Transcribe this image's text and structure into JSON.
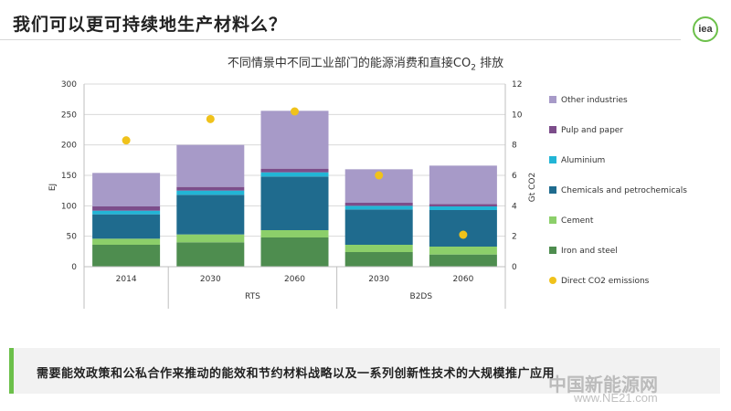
{
  "page": {
    "title": "我们可以更可持续地生产材料么？",
    "logo_text": "iea",
    "bottom_text": "需要能效政策和公私合作来推动的能效和节约材料战略以及一系列创新性技术的大规模推广应用",
    "watermark": "中国新能源网",
    "watermark_url": "www.NE21.com"
  },
  "chart_data": {
    "type": "bar",
    "title_prefix": "不同情景中不同工业部门的能源消费和直接CO",
    "title_sub": "2",
    "title_suffix": " 排放",
    "ylabel": "EJ",
    "y2label": "Gt CO2",
    "ylim": [
      0,
      300
    ],
    "yticks": [
      0,
      50,
      100,
      150,
      200,
      250,
      300
    ],
    "y2lim": [
      0,
      12
    ],
    "y2ticks": [
      0,
      2,
      4,
      6,
      8,
      10,
      12
    ],
    "categories": [
      "2014",
      "2030",
      "2060",
      "2030",
      "2060"
    ],
    "groups": [
      {
        "label": "RTS",
        "start": 1,
        "end": 2
      },
      {
        "label": "B2DS",
        "start": 3,
        "end": 4
      }
    ],
    "series": [
      {
        "name": "Iron and steel",
        "color": "#4e8d4f",
        "values": [
          36,
          40,
          48,
          24,
          20
        ]
      },
      {
        "name": "Cement",
        "color": "#8ccf6a",
        "values": [
          10,
          13,
          12,
          12,
          13
        ]
      },
      {
        "name": "Chemicals and petrochemicals",
        "color": "#1f6b8e",
        "values": [
          40,
          65,
          88,
          58,
          60
        ]
      },
      {
        "name": "Aluminium",
        "color": "#22b5d6",
        "values": [
          6,
          7,
          7,
          6,
          6
        ]
      },
      {
        "name": "Pulp and paper",
        "color": "#7c4d8a",
        "values": [
          7,
          6,
          6,
          5,
          4
        ]
      },
      {
        "name": "Other industries",
        "color": "#a79ac8",
        "values": [
          55,
          69,
          95,
          55,
          63
        ]
      }
    ],
    "emissions": {
      "name": "Direct CO2 emissions",
      "color": "#f0c21b",
      "values": [
        8.3,
        9.7,
        10.2,
        6.0,
        2.1
      ]
    }
  }
}
